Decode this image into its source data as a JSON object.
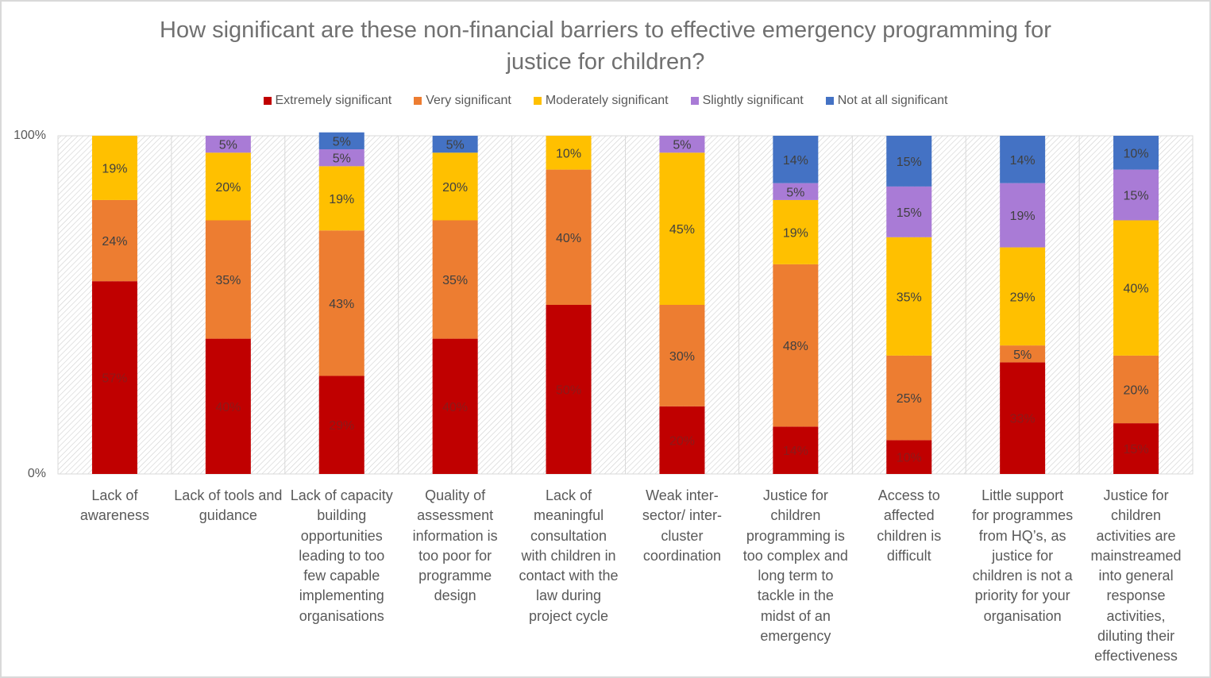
{
  "chart_data": {
    "type": "bar",
    "stacked": "percent",
    "title": "How significant are these non-financial barriers to effective emergency programming for justice for children?",
    "title_lines": [
      "How significant are these non-financial barriers to effective emergency programming for",
      "justice for children?"
    ],
    "xlabel": "",
    "ylabel": "",
    "ylim": [
      0,
      100
    ],
    "yticks": [
      "0%",
      "100%"
    ],
    "legend_position": "top",
    "categories": [
      "Lack of awareness",
      "Lack of tools and guidance",
      "Lack of capacity building opportunities leading to too few capable implementing organisations",
      "Quality of assessment information is too poor for programme design",
      "Lack of meaningful consultation with children in contact with the law during project cycle",
      "Weak inter-sector/ inter-cluster coordination",
      "Justice for children programming is too complex and long term to tackle in the midst of an emergency",
      "Access to affected children is difficult",
      "Little support for programmes from HQ's, as justice for children is not a priority for your organisation",
      "Justice for children activities are mainstreamed into general response activities, diluting their effectiveness"
    ],
    "series": [
      {
        "name": "Extremely significant",
        "color": "#c00000",
        "values": [
          57,
          40,
          29,
          40,
          50,
          20,
          14,
          10,
          33,
          15
        ]
      },
      {
        "name": "Very significant",
        "color": "#ed7d31",
        "values": [
          24,
          35,
          43,
          35,
          40,
          30,
          48,
          25,
          5,
          20
        ]
      },
      {
        "name": "Moderately significant",
        "color": "#ffc000",
        "values": [
          19,
          20,
          19,
          20,
          10,
          45,
          19,
          35,
          29,
          40
        ]
      },
      {
        "name": "Slightly significant",
        "color": "#a97bd6",
        "values": [
          0,
          5,
          5,
          0,
          0,
          5,
          5,
          15,
          19,
          15
        ]
      },
      {
        "name": "Not at all significant",
        "color": "#4472c4",
        "values": [
          0,
          0,
          5,
          5,
          0,
          0,
          14,
          15,
          14,
          10
        ]
      }
    ],
    "grid": true
  },
  "legend": [
    {
      "label": "Extremely significant",
      "color": "#c00000"
    },
    {
      "label": "Very significant",
      "color": "#ed7d31"
    },
    {
      "label": "Moderately significant",
      "color": "#ffc000"
    },
    {
      "label": "Slightly significant",
      "color": "#a97bd6"
    },
    {
      "label": "Not at all significant",
      "color": "#4472c4"
    }
  ],
  "category_label_lines": [
    [
      "Lack of",
      "awareness"
    ],
    [
      "Lack of tools and",
      "guidance"
    ],
    [
      "Lack of capacity",
      "building",
      "opportunities",
      "leading to too",
      "few capable",
      "implementing",
      "organisations"
    ],
    [
      "Quality of",
      "assessment",
      "information is",
      "too poor for",
      "programme",
      "design"
    ],
    [
      "Lack of",
      "meaningful",
      "consultation",
      "with children in",
      "contact with the",
      "law during",
      "project cycle"
    ],
    [
      "Weak inter-",
      "sector/ inter-",
      "cluster",
      "coordination"
    ],
    [
      "Justice for",
      "children",
      "programming is",
      "too complex and",
      "long term to",
      "tackle in the",
      "midst of an",
      "emergency"
    ],
    [
      "Access to",
      "affected",
      "children is",
      "difficult"
    ],
    [
      "Little support",
      "for programmes",
      "from HQ’s, as",
      "justice for",
      "children is not a",
      "priority for your",
      "organisation"
    ],
    [
      "Justice for",
      "children",
      "activities are",
      "mainstreamed",
      "into general",
      "response",
      "activities,",
      "diluting their",
      "effectiveness"
    ]
  ]
}
